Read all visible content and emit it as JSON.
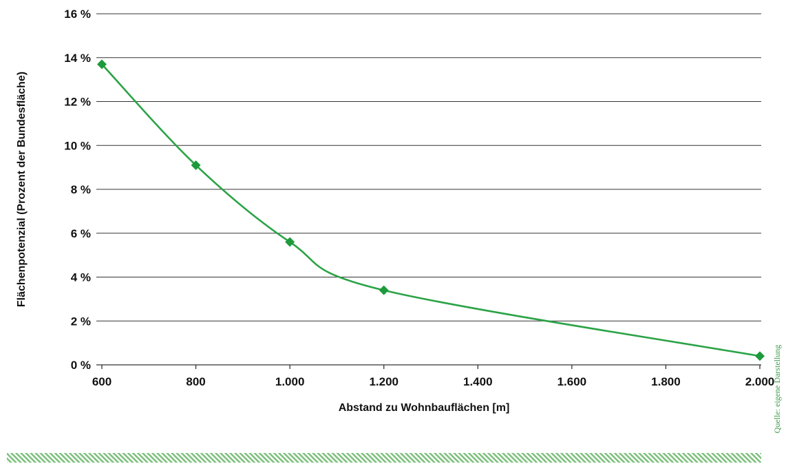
{
  "chart_data": {
    "type": "line",
    "title": "",
    "xlabel": "Abstand zu Wohnbauflächen [m]",
    "ylabel": "Flächenpotenzial (Prozent der Bundesfläche)",
    "x_ticks": [
      "600",
      "800",
      "1.000",
      "1.200",
      "1.400",
      "1.600",
      "1.800",
      "2.000"
    ],
    "x_tick_values": [
      600,
      800,
      1000,
      1200,
      1400,
      1600,
      1800,
      2000
    ],
    "y_ticks": [
      "0 %",
      "2 %",
      "4 %",
      "6 %",
      "8 %",
      "10 %",
      "12 %",
      "14 %",
      "16 %"
    ],
    "y_tick_values": [
      0,
      2,
      4,
      6,
      8,
      10,
      12,
      14,
      16
    ],
    "xlim": [
      600,
      2000
    ],
    "ylim": [
      0,
      16
    ],
    "grid": "horizontal",
    "legend": "none",
    "series": [
      {
        "x": [
          600,
          800,
          1000,
          1200,
          2000
        ],
        "y": [
          13.7,
          9.1,
          5.6,
          3.4,
          0.4
        ],
        "marker": "diamond"
      }
    ]
  },
  "source": "Quelle: eigene Darstellung",
  "colors": {
    "line": "#2ba347",
    "marker": "#1e9a3c",
    "grid": "#333333",
    "stripe": "#7ec07d",
    "source_text": "#3a9a4a"
  }
}
